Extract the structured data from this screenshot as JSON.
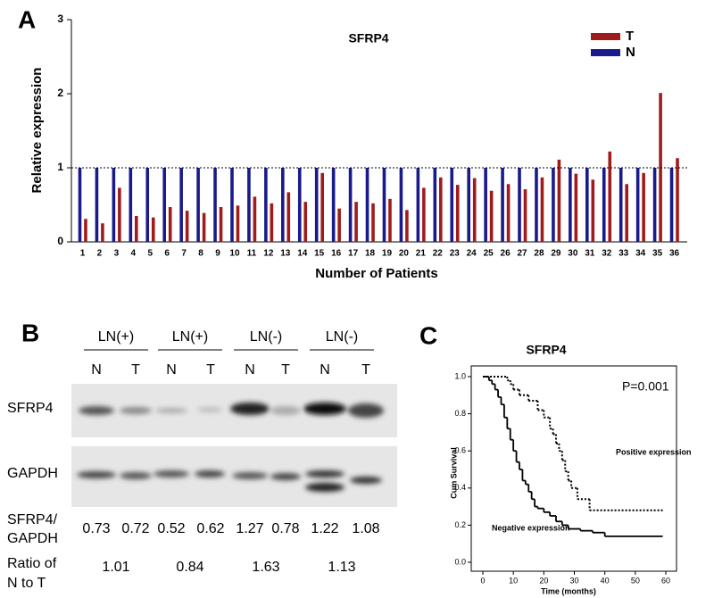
{
  "panel_labels": [
    "A",
    "B",
    "C"
  ],
  "chart_data": [
    {
      "type": "bar",
      "title": "SFRP4",
      "ylabel": "Relative expression",
      "xlabel": "Number of Patients",
      "categories": [
        "1",
        "2",
        "3",
        "4",
        "5",
        "6",
        "7",
        "8",
        "9",
        "10",
        "11",
        "12",
        "13",
        "14",
        "15",
        "16",
        "17",
        "18",
        "19",
        "20",
        "21",
        "22",
        "23",
        "24",
        "25",
        "26",
        "27",
        "28",
        "29",
        "30",
        "31",
        "32",
        "33",
        "34",
        "35",
        "36"
      ],
      "series": [
        {
          "name": "T",
          "color": "#a01c1c",
          "values": [
            0.31,
            0.25,
            0.73,
            0.35,
            0.33,
            0.47,
            0.42,
            0.39,
            0.47,
            0.49,
            0.61,
            0.52,
            0.67,
            0.54,
            0.93,
            0.45,
            0.54,
            0.52,
            0.58,
            0.43,
            0.73,
            0.87,
            0.77,
            0.86,
            0.69,
            0.78,
            0.71,
            0.87,
            1.11,
            0.92,
            0.84,
            1.22,
            0.78,
            0.93,
            2.01,
            1.13
          ]
        },
        {
          "name": "N",
          "color": "#1a1a8c",
          "values": [
            1,
            1,
            1,
            1,
            1,
            1,
            1,
            1,
            1,
            1,
            1,
            1,
            1,
            1,
            1,
            1,
            1,
            1,
            1,
            1,
            1,
            1,
            1,
            1,
            1,
            1,
            1,
            1,
            1,
            1,
            1,
            1,
            1,
            1,
            1,
            1
          ]
        }
      ],
      "ylim": [
        0,
        3
      ],
      "yticks": [
        0,
        1,
        2,
        3
      ],
      "reference_line": 1,
      "grid": false,
      "legend": "upper right"
    },
    {
      "type": "line",
      "drawstyle": "steps",
      "title": "SFRP4",
      "ylabel": "Cum Survival",
      "xlabel": "Time (months)",
      "annotations": [
        "P=0.001"
      ],
      "series": [
        {
          "name": "Positive expression",
          "color": "#000000",
          "style": "dashed",
          "x": [
            0,
            8,
            9,
            10,
            12,
            15,
            18,
            20,
            22,
            23,
            24,
            25,
            26,
            27,
            28,
            29,
            31,
            35,
            59
          ],
          "values": [
            1.0,
            0.98,
            0.96,
            0.93,
            0.9,
            0.87,
            0.82,
            0.78,
            0.72,
            0.69,
            0.64,
            0.6,
            0.55,
            0.49,
            0.44,
            0.4,
            0.34,
            0.28,
            0.28
          ]
        },
        {
          "name": "Negative expression",
          "color": "#000000",
          "style": "solid",
          "x": [
            0,
            2,
            3,
            4,
            5,
            6,
            7,
            8,
            9,
            10,
            11,
            12,
            13,
            14,
            15,
            16,
            17,
            18,
            20,
            22,
            24,
            26,
            28,
            32,
            36,
            40,
            59
          ],
          "values": [
            1.0,
            0.98,
            0.96,
            0.93,
            0.89,
            0.85,
            0.78,
            0.72,
            0.66,
            0.6,
            0.54,
            0.5,
            0.44,
            0.42,
            0.38,
            0.34,
            0.3,
            0.29,
            0.27,
            0.25,
            0.22,
            0.2,
            0.18,
            0.17,
            0.16,
            0.14,
            0.14
          ]
        }
      ],
      "xlim": [
        0,
        60
      ],
      "xticks": [
        0,
        10,
        20,
        30,
        40,
        50,
        60
      ],
      "ylim": [
        0,
        1
      ],
      "yticks": [
        {
          "value": 0,
          "label": "0.0"
        },
        0.2,
        0.4,
        0.6,
        0.8,
        {
          "value": 1,
          "label": "1.0"
        }
      ]
    }
  ],
  "blot": {
    "groups": [
      "LN(+)",
      "LN(+)",
      "LN(-)",
      "LN(-)"
    ],
    "lanes": [
      "N",
      "T",
      "N",
      "T",
      "N",
      "T",
      "N",
      "T"
    ],
    "rows": [
      "SFRP4",
      "GAPDH"
    ],
    "ratio_label": [
      "SFRP4/",
      "GAPDH"
    ],
    "ratios": [
      "0.73",
      "0.72",
      "0.52",
      "0.62",
      "1.27",
      "0.78",
      "1.22",
      "1.08"
    ],
    "nt_label": [
      "Ratio of",
      "N to T"
    ],
    "nt_ratios": [
      "1.01",
      "0.84",
      "1.63",
      "1.13"
    ]
  }
}
